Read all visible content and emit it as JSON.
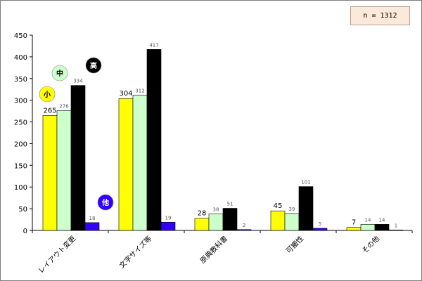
{
  "n_label": "n = 1312",
  "colors": {
    "小": "#ffff00",
    "中": "#ccffcc",
    "高": "#000000",
    "他": "#3300ff"
  },
  "chart_data": {
    "type": "bar",
    "categories": [
      "レイアウト変更",
      "文字サイズ等",
      "原典教科書",
      "可搬性",
      "その他"
    ],
    "series": [
      {
        "name": "小",
        "values": [
          265,
          304,
          28,
          45,
          7
        ]
      },
      {
        "name": "中",
        "values": [
          276,
          312,
          38,
          39,
          14
        ]
      },
      {
        "name": "高",
        "values": [
          334,
          417,
          51,
          101,
          14
        ]
      },
      {
        "name": "他",
        "values": [
          18,
          19,
          2,
          5,
          1
        ]
      }
    ],
    "yticks": [
      0,
      50,
      100,
      150,
      200,
      250,
      300,
      350,
      400,
      450
    ],
    "ylim": [
      0,
      450
    ],
    "grid": false,
    "legend": "bubbles-over-first-category"
  }
}
